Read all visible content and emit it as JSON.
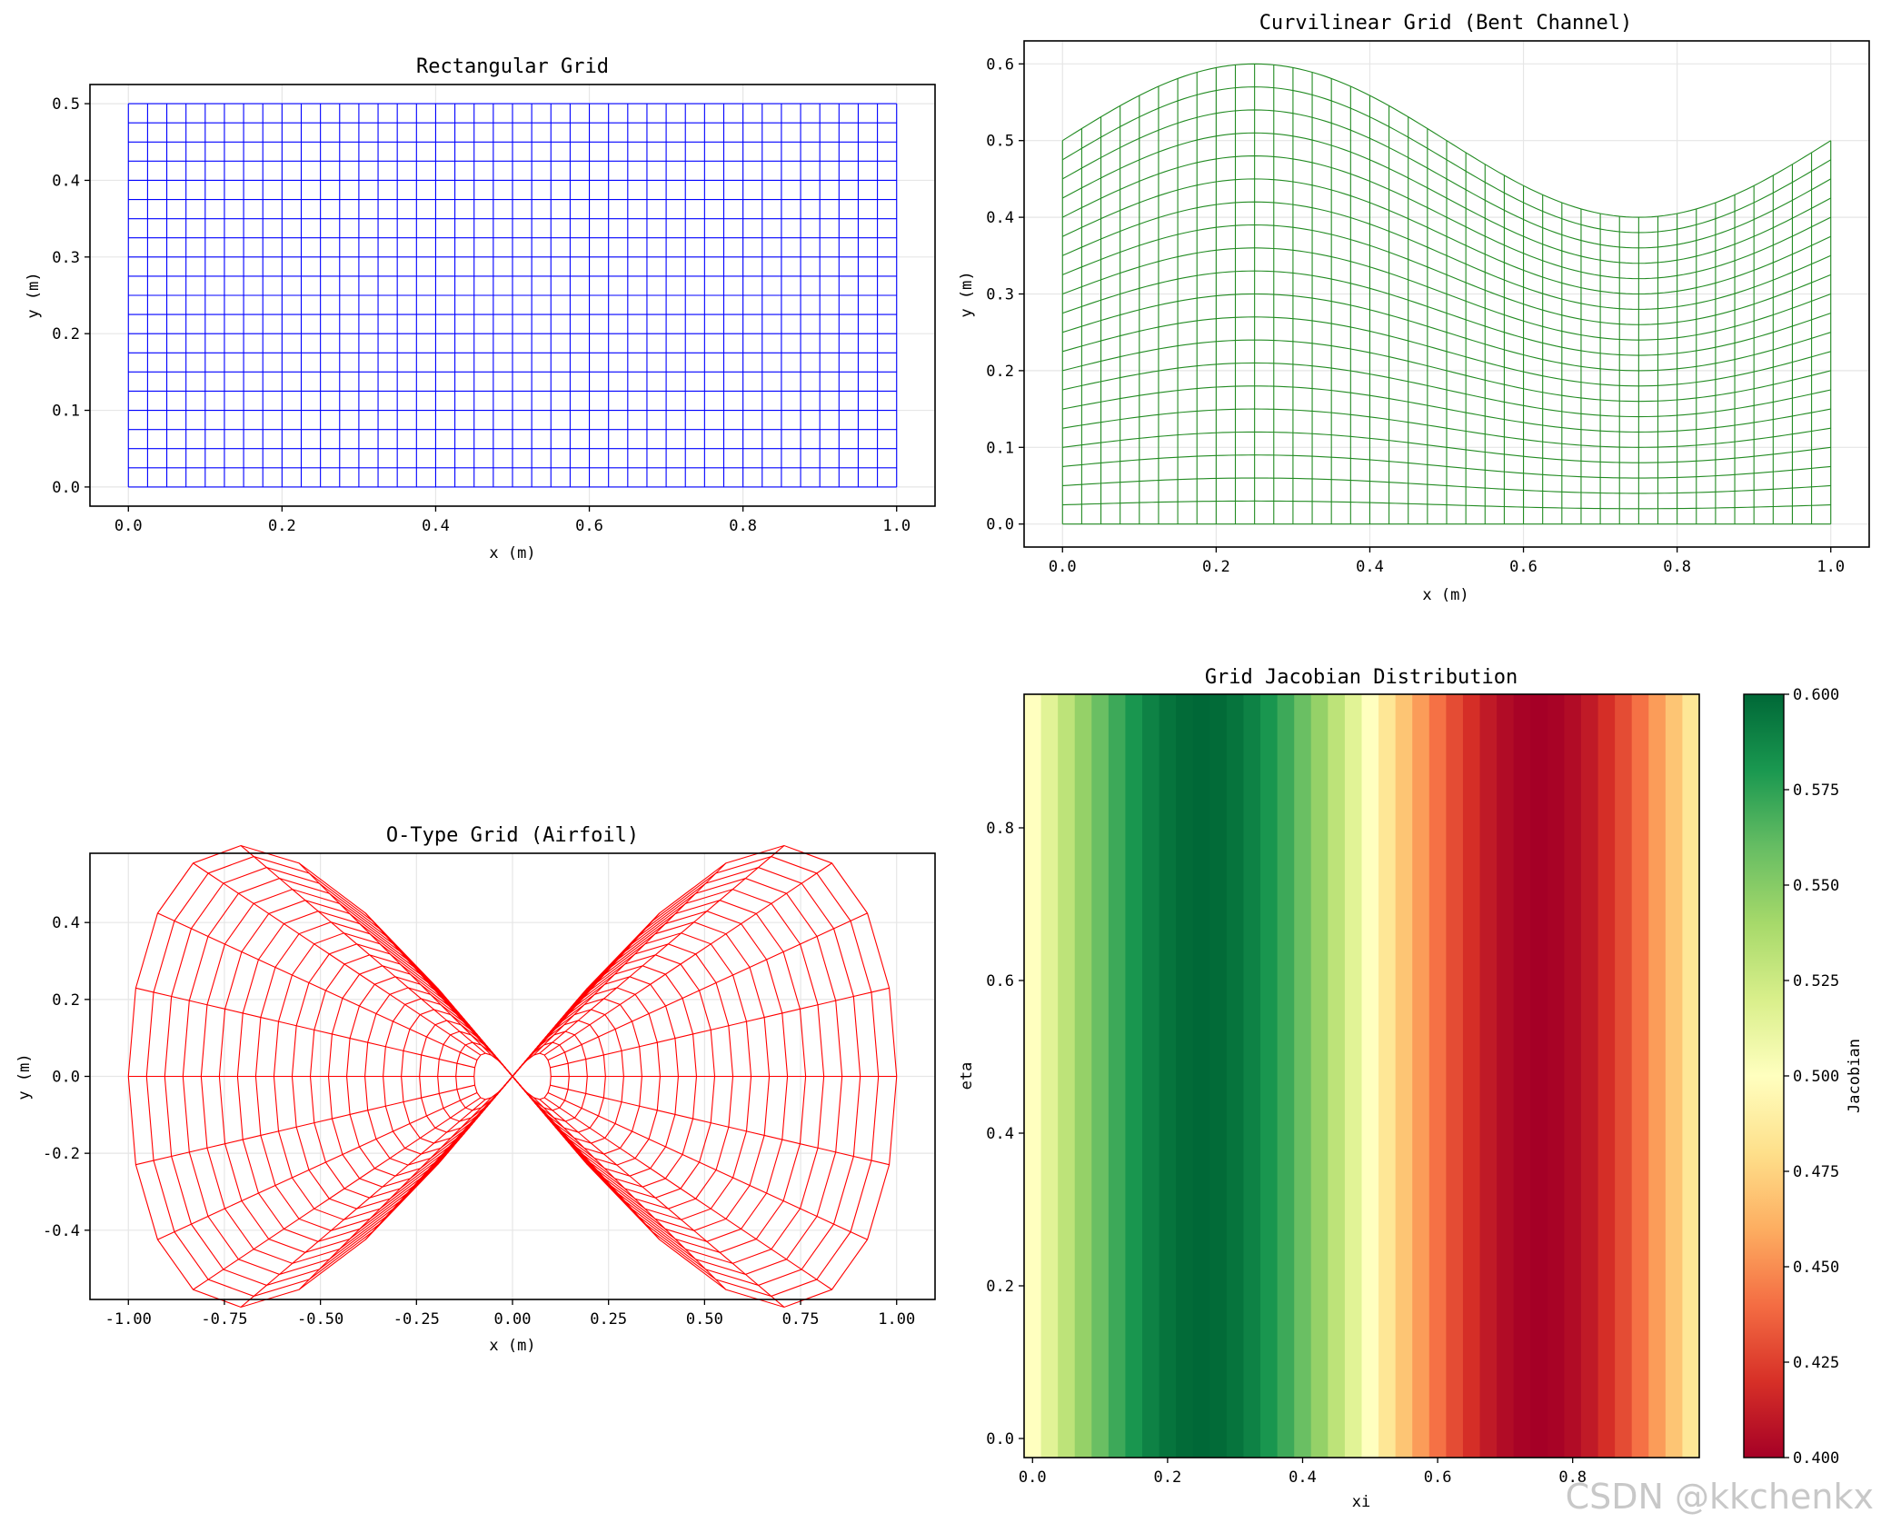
{
  "watermark": "CSDN @kkchenkx",
  "chart_data": [
    {
      "id": "rect",
      "type": "line",
      "title": "Rectangular Grid",
      "xlabel": "x (m)",
      "ylabel": "y (m)",
      "xlim": [
        -0.05,
        1.05
      ],
      "ylim": [
        -0.025,
        0.525
      ],
      "xticks": [
        0.0,
        0.2,
        0.4,
        0.6,
        0.8,
        1.0
      ],
      "xtick_labels": [
        "0.0",
        "0.2",
        "0.4",
        "0.6",
        "0.8",
        "1.0"
      ],
      "yticks": [
        0.0,
        0.1,
        0.2,
        0.3,
        0.4,
        0.5
      ],
      "ytick_labels": [
        "0.0",
        "0.1",
        "0.2",
        "0.3",
        "0.4",
        "0.5"
      ],
      "grid": true,
      "color": "#0000ff",
      "nx": 41,
      "ny": 21,
      "x_range": [
        0,
        1
      ],
      "y_range": [
        0,
        0.5
      ]
    },
    {
      "id": "curv",
      "type": "line",
      "title": "Curvilinear Grid (Bent Channel)",
      "xlabel": "x (m)",
      "ylabel": "y (m)",
      "xlim": [
        -0.05,
        1.05
      ],
      "ylim": [
        -0.03,
        0.63
      ],
      "xticks": [
        0.0,
        0.2,
        0.4,
        0.6,
        0.8,
        1.0
      ],
      "xtick_labels": [
        "0.0",
        "0.2",
        "0.4",
        "0.6",
        "0.8",
        "1.0"
      ],
      "yticks": [
        0.0,
        0.1,
        0.2,
        0.3,
        0.4,
        0.5,
        0.6
      ],
      "ytick_labels": [
        "0.0",
        "0.1",
        "0.2",
        "0.3",
        "0.4",
        "0.5",
        "0.6"
      ],
      "grid": true,
      "color": "#228b22",
      "nx": 41,
      "ny": 21,
      "wall": "y_top = 0.5 + 0.1*sin(2*pi*x)"
    },
    {
      "id": "otype",
      "type": "line",
      "title": "O-Type Grid (Airfoil)",
      "xlabel": "x (m)",
      "ylabel": "y (m)",
      "xlim": [
        -1.1,
        1.1
      ],
      "ylim": [
        -0.58,
        0.58
      ],
      "xticks": [
        -1.0,
        -0.75,
        -0.5,
        -0.25,
        0.0,
        0.25,
        0.5,
        0.75,
        1.0
      ],
      "xtick_labels": [
        "-1.00",
        "-0.75",
        "-0.50",
        "-0.25",
        "0.00",
        "0.25",
        "0.50",
        "0.75",
        "1.00"
      ],
      "yticks": [
        -0.4,
        -0.2,
        0.0,
        0.2,
        0.4
      ],
      "ytick_labels": [
        "-0.4",
        "-0.2",
        "0.0",
        "0.2",
        "0.4"
      ],
      "grid": true,
      "color": "#ff0000",
      "n_theta": 32,
      "n_r": 20,
      "r_range": [
        0.1,
        1.0
      ]
    },
    {
      "id": "jac",
      "type": "heatmap",
      "title": "Grid Jacobian Distribution",
      "xlabel": "xi",
      "ylabel": "eta",
      "xlim": [
        -0.0125,
        0.9875
      ],
      "ylim": [
        -0.025,
        0.975
      ],
      "xticks": [
        0.0,
        0.2,
        0.4,
        0.6,
        0.8
      ],
      "xtick_labels": [
        "0.0",
        "0.2",
        "0.4",
        "0.6",
        "0.8"
      ],
      "yticks": [
        0.0,
        0.2,
        0.4,
        0.6,
        0.8
      ],
      "ytick_labels": [
        "0.0",
        "0.2",
        "0.4",
        "0.6",
        "0.8"
      ],
      "columns": 40,
      "values": [
        0.5,
        0.5156,
        0.5309,
        0.5454,
        0.5588,
        0.5707,
        0.5809,
        0.5891,
        0.5951,
        0.5988,
        0.6,
        0.5988,
        0.5951,
        0.5891,
        0.5809,
        0.5707,
        0.5588,
        0.5454,
        0.5309,
        0.5156,
        0.5,
        0.4844,
        0.4691,
        0.4546,
        0.4412,
        0.4293,
        0.4191,
        0.4109,
        0.4049,
        0.4012,
        0.4,
        0.4012,
        0.4049,
        0.4109,
        0.4191,
        0.4293,
        0.4412,
        0.4546,
        0.4691,
        0.4844
      ],
      "colormap": "RdYlGn",
      "vmin": 0.4,
      "vmax": 0.6,
      "colorbar_label": "Jacobian",
      "colorbar_ticks": [
        0.4,
        0.425,
        0.45,
        0.475,
        0.5,
        0.525,
        0.55,
        0.575,
        0.6
      ],
      "colorbar_tick_labels": [
        "0.400",
        "0.425",
        "0.450",
        "0.475",
        "0.500",
        "0.525",
        "0.550",
        "0.575",
        "0.600"
      ]
    }
  ]
}
